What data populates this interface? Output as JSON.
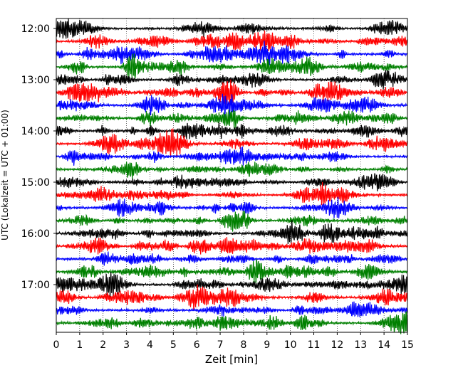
{
  "chart_data": {
    "type": "line",
    "subtype": "helicorder",
    "xlabel": "Zeit  [min]",
    "ylabel": "UTC (Lokalzeit = UTC + 01:00)",
    "xlim": [
      0,
      15
    ],
    "x_ticks": [
      0,
      1,
      2,
      3,
      4,
      5,
      6,
      7,
      8,
      9,
      10,
      11,
      12,
      13,
      14,
      15
    ],
    "x_tick_labels": [
      "0",
      "1",
      "2",
      "3",
      "4",
      "5",
      "6",
      "7",
      "8",
      "9",
      "10",
      "11",
      "12",
      "13",
      "14",
      "15"
    ],
    "y_tick_labels": [
      "12:00",
      "13:00",
      "14:00",
      "15:00",
      "16:00",
      "17:00"
    ],
    "y_tick_rows": [
      0,
      4,
      8,
      12,
      16,
      20
    ],
    "row_count": 24,
    "row_interval_min": 15,
    "grid": "vertical-dotted",
    "row_colors": [
      "#000000",
      "#ff0000",
      "#0000ff",
      "#008000"
    ]
  }
}
